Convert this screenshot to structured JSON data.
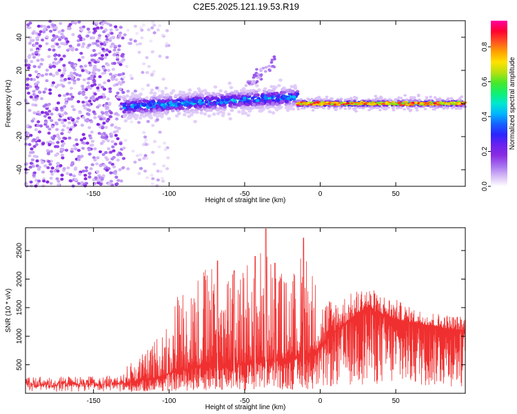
{
  "figure_title": "C2E5.2025.121.19.53.R19",
  "colors": {
    "snr_line": "#f03030",
    "axis": "#000000",
    "colormap": [
      "#ffffff",
      "#d4b8f6",
      "#a56ff0",
      "#8a2be2",
      "#6a22f0",
      "#2a24ff",
      "#1560ff",
      "#00b5ff",
      "#00e8d0",
      "#10f070",
      "#46e82a",
      "#b8e010",
      "#ffe200",
      "#ffa000",
      "#ff5020",
      "#ff0030",
      "#ff00a0"
    ]
  },
  "chart_data": [
    {
      "type": "heatmap",
      "title": "",
      "xlabel": "Height of straight line (km)",
      "ylabel": "Frequency (Hz)",
      "xlim": [
        -195,
        96
      ],
      "ylim": [
        -50,
        50
      ],
      "x_ticks": [
        -150,
        -100,
        -50,
        0,
        50
      ],
      "y_ticks": [
        -40,
        -20,
        0,
        20,
        40
      ],
      "x_tick_labels": [
        "-150",
        "-100",
        "-50",
        "0",
        "50"
      ],
      "y_tick_labels": [
        "-40",
        "-20",
        "0",
        "20",
        "40"
      ],
      "colorbar": {
        "label": "Normalized spectral amplitude",
        "range": [
          0,
          0.95
        ],
        "ticks": [
          0,
          0.2,
          0.4,
          0.6,
          0.8
        ],
        "tick_labels": [
          "0.0",
          "0.2",
          "0.4",
          "0.6",
          "0.8"
        ]
      },
      "regions": [
        {
          "x": [
            -195,
            -130
          ],
          "f": [
            -50,
            50
          ],
          "amplitude": [
            0.05,
            0.2
          ],
          "pattern": "broadband noise"
        },
        {
          "x": [
            -130,
            -100
          ],
          "f": [
            -50,
            50
          ],
          "amplitude": [
            0.02,
            0.1
          ],
          "pattern": "sparse noise"
        },
        {
          "x": [
            -130,
            -15
          ],
          "f_center": [
            -2,
            4
          ],
          "f_halfwidth": 8,
          "amplitude": [
            0.2,
            0.45
          ],
          "pattern": "signal band"
        },
        {
          "x": [
            -50,
            -30
          ],
          "f": [
            10,
            26
          ],
          "amplitude": [
            0.05,
            0.15
          ],
          "pattern": "spur"
        },
        {
          "x": [
            -15,
            96
          ],
          "f_center": 0,
          "f_halfwidth": 2,
          "amplitude": [
            0.6,
            0.9
          ],
          "pattern": "narrow carrier"
        }
      ]
    },
    {
      "type": "line",
      "title": "",
      "xlabel": "Height of straight line (km)",
      "ylabel": "SNR (10 * v/v)",
      "xlim": [
        -195,
        96
      ],
      "ylim": [
        0,
        2900
      ],
      "x_ticks": [
        -150,
        -100,
        -50,
        0,
        50
      ],
      "y_ticks": [
        500,
        1000,
        1500,
        2000,
        2500
      ],
      "x_tick_labels": [
        "-150",
        "-100",
        "-50",
        "0",
        "50"
      ],
      "y_tick_labels": [
        "500",
        "1000",
        "1500",
        "2000",
        "2500"
      ],
      "envelope": {
        "x": [
          -195,
          -150,
          -132,
          -125,
          -115,
          -105,
          -95,
          -85,
          -75,
          -65,
          -50,
          -40,
          -30,
          -20,
          -10,
          0,
          10,
          20,
          30,
          40,
          50,
          60,
          70,
          80,
          96
        ],
        "base": [
          120,
          130,
          150,
          200,
          240,
          300,
          380,
          450,
          480,
          500,
          520,
          560,
          600,
          600,
          640,
          800,
          1100,
          1300,
          1500,
          1400,
          1300,
          1250,
          1200,
          1150,
          1100
        ],
        "top": [
          300,
          300,
          320,
          600,
          750,
          1100,
          1800,
          2100,
          2300,
          2000,
          2300,
          2600,
          2300,
          2000,
          2700,
          1700,
          1700,
          1750,
          1900,
          1750,
          1650,
          1500,
          1450,
          1400,
          1350
        ]
      },
      "peaks": [
        {
          "x": -36,
          "y": 2880
        },
        {
          "x": -11,
          "y": 2720
        },
        {
          "x": -43,
          "y": 2400
        },
        {
          "x": -68,
          "y": 2320
        },
        {
          "x": -30,
          "y": 2280
        },
        {
          "x": -57,
          "y": 2150
        }
      ]
    }
  ]
}
